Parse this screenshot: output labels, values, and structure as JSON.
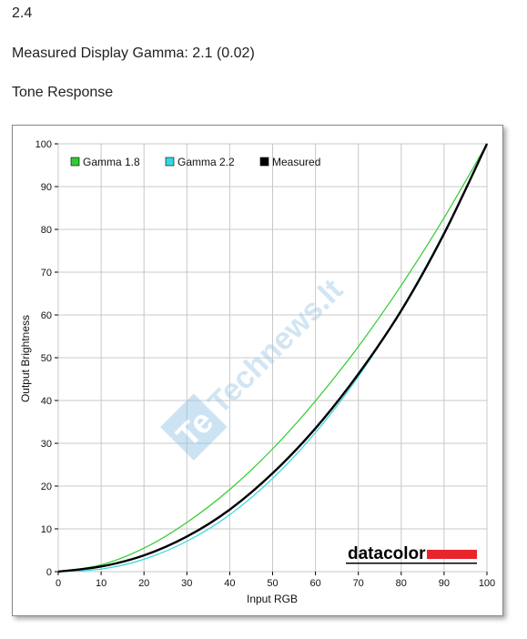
{
  "header": {
    "line1": "2.4",
    "line2": "Measured Display Gamma: 2.1 (0.02)",
    "line3": "Tone Response"
  },
  "watermark": {
    "text": "Technews.lt",
    "icon": "te-logo-icon"
  },
  "brand": {
    "logo_text": "datacolor",
    "bar_color": "#e8242c"
  },
  "colors": {
    "gamma18": "#2ecc2e",
    "gamma22": "#33d6e0",
    "measured": "#000000"
  },
  "chart_data": {
    "type": "line",
    "xlabel": "Input RGB",
    "ylabel": "Output Brightness",
    "xlim": [
      0,
      100
    ],
    "ylim": [
      0,
      100
    ],
    "xticks": [
      0,
      10,
      20,
      30,
      40,
      50,
      60,
      70,
      80,
      90,
      100
    ],
    "yticks": [
      0,
      10,
      20,
      30,
      40,
      50,
      60,
      70,
      80,
      90,
      100
    ],
    "grid": true,
    "legend_position": "top-left",
    "x": [
      0,
      10,
      20,
      30,
      40,
      50,
      60,
      70,
      80,
      90,
      100
    ],
    "series": [
      {
        "name": "Gamma 1.8",
        "color": "#2ecc2e",
        "values": [
          0,
          1.6,
          5.5,
          11.5,
          19.2,
          28.7,
          39.9,
          52.6,
          66.9,
          82.7,
          100
        ]
      },
      {
        "name": "Gamma 2.2",
        "color": "#33d6e0",
        "values": [
          0,
          0.6,
          2.9,
          7.1,
          13.3,
          21.8,
          32.5,
          45.6,
          61.2,
          79.3,
          100
        ]
      },
      {
        "name": "Measured",
        "color": "#000000",
        "values": [
          0,
          1.2,
          3.8,
          8.2,
          14.5,
          23.0,
          33.5,
          46.2,
          61.0,
          79.0,
          100
        ]
      }
    ]
  }
}
